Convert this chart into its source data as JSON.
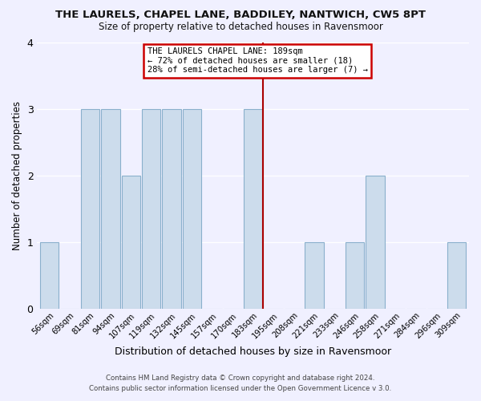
{
  "title": "THE LAURELS, CHAPEL LANE, BADDILEY, NANTWICH, CW5 8PT",
  "subtitle": "Size of property relative to detached houses in Ravensmoor",
  "xlabel": "Distribution of detached houses by size in Ravensmoor",
  "ylabel": "Number of detached properties",
  "footer_line1": "Contains HM Land Registry data © Crown copyright and database right 2024.",
  "footer_line2": "Contains public sector information licensed under the Open Government Licence v 3.0.",
  "categories": [
    "56sqm",
    "69sqm",
    "81sqm",
    "94sqm",
    "107sqm",
    "119sqm",
    "132sqm",
    "145sqm",
    "157sqm",
    "170sqm",
    "183sqm",
    "195sqm",
    "208sqm",
    "221sqm",
    "233sqm",
    "246sqm",
    "258sqm",
    "271sqm",
    "284sqm",
    "296sqm",
    "309sqm"
  ],
  "values": [
    1,
    0,
    3,
    3,
    2,
    3,
    3,
    3,
    0,
    0,
    3,
    0,
    0,
    1,
    0,
    1,
    2,
    0,
    0,
    0,
    1
  ],
  "bar_color": "#ccdcec",
  "bar_edge_color": "#8ab0cc",
  "bg_color": "#f0f0ff",
  "grid_color": "#ffffff",
  "vline_x": 10.5,
  "vline_color": "#aa0000",
  "annotation_title": "THE LAURELS CHAPEL LANE: 189sqm",
  "annotation_line1": "← 72% of detached houses are smaller (18)",
  "annotation_line2": "28% of semi-detached houses are larger (7) →",
  "annotation_box_color": "#ffffff",
  "annotation_border_color": "#cc0000",
  "ylim": [
    0,
    4
  ],
  "yticks": [
    0,
    1,
    2,
    3,
    4
  ]
}
